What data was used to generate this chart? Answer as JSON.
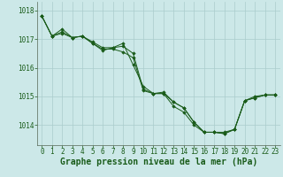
{
  "title": "Graphe pression niveau de la mer (hPa)",
  "background_color": "#cce8e8",
  "grid_color": "#aacccc",
  "line_color": "#1a5c1a",
  "marker_color": "#1a5c1a",
  "xlim": [
    -0.5,
    23.5
  ],
  "ylim": [
    1013.3,
    1018.3
  ],
  "yticks": [
    1014,
    1015,
    1016,
    1017,
    1018
  ],
  "xticks": [
    0,
    1,
    2,
    3,
    4,
    5,
    6,
    7,
    8,
    9,
    10,
    11,
    12,
    13,
    14,
    15,
    16,
    17,
    18,
    19,
    20,
    21,
    22,
    23
  ],
  "series1": [
    1017.8,
    1017.1,
    1017.25,
    1017.05,
    1017.1,
    1016.85,
    1016.65,
    1016.65,
    1016.55,
    1016.35,
    1015.2,
    1015.1,
    1015.1,
    1014.65,
    1014.45,
    1014.0,
    1013.75,
    1013.75,
    1013.75,
    1013.85,
    1014.85,
    1015.0,
    1015.05,
    1015.05
  ],
  "series2": [
    1017.8,
    1017.1,
    1017.35,
    1017.05,
    1017.1,
    1016.9,
    1016.7,
    1016.7,
    1016.75,
    1016.5,
    1015.25,
    1015.1,
    1015.1,
    1014.8,
    1014.6,
    1014.1,
    1013.75,
    1013.75,
    1013.7,
    1013.85,
    1014.85,
    1014.95,
    1015.05,
    1015.05
  ],
  "series3": [
    1017.8,
    1017.1,
    1017.2,
    1017.05,
    1017.1,
    1016.85,
    1016.6,
    1016.7,
    1016.85,
    1016.1,
    1015.35,
    1015.1,
    1015.15,
    1014.8,
    1014.6,
    1014.1,
    1013.75,
    1013.75,
    1013.7,
    1013.85,
    1014.85,
    1014.95,
    1015.05,
    1015.05
  ],
  "title_fontsize": 7,
  "tick_fontsize": 5.5,
  "tick_color": "#1a5c1a",
  "axis_color": "#556655"
}
